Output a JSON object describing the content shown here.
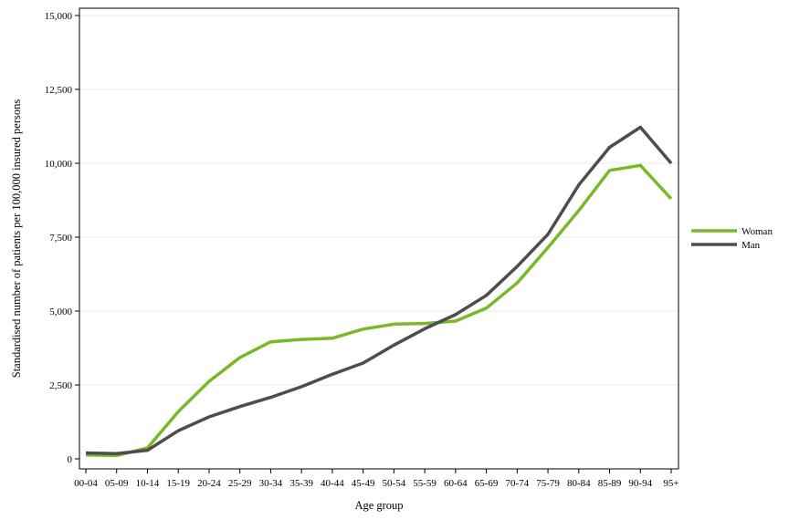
{
  "chart_data": {
    "type": "line",
    "title": "",
    "xlabel": "Age group",
    "ylabel": "Standardised number of patients per 100,000 insured persons",
    "categories": [
      "00-04",
      "05-09",
      "10-14",
      "15-19",
      "20-24",
      "25-29",
      "30-34",
      "35-39",
      "40-44",
      "45-49",
      "50-54",
      "55-59",
      "60-64",
      "65-69",
      "70-74",
      "75-79",
      "80-84",
      "85-89",
      "90-94",
      "95+"
    ],
    "yticks": [
      0,
      2500,
      5000,
      7500,
      10000,
      12500,
      15000
    ],
    "ytick_labels": [
      "0",
      "2,500",
      "5,000",
      "7,500",
      "10,000",
      "12,500",
      "15,000"
    ],
    "ylim": [
      0,
      15000
    ],
    "grid": true,
    "legend_position": "right",
    "series": [
      {
        "name": "Woman",
        "color": "#7ab828",
        "values": [
          130,
          110,
          370,
          1600,
          2620,
          3430,
          3960,
          4040,
          4080,
          4390,
          4560,
          4580,
          4660,
          5100,
          5950,
          7150,
          8400,
          9760,
          9930,
          8800
        ]
      },
      {
        "name": "Man",
        "color": "#4d4d4d",
        "values": [
          200,
          180,
          290,
          950,
          1420,
          1770,
          2080,
          2440,
          2860,
          3240,
          3850,
          4400,
          4880,
          5530,
          6510,
          7600,
          9270,
          10540,
          11220,
          10000
        ]
      }
    ]
  }
}
